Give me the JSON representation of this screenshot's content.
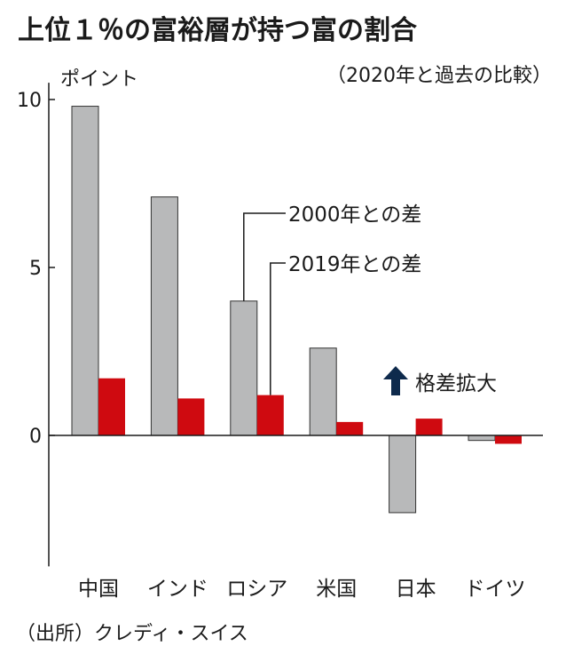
{
  "colors": {
    "series_2000": "#b8b9ba",
    "series_2019": "#cf0a10",
    "arrow": "#0e2a4c",
    "axis": "#1a1a1a"
  },
  "chart_data": {
    "type": "bar",
    "title": "上位１％の富裕層が持つ富の割合",
    "subtitle": "（2020年と過去の比較）",
    "ylabel": "ポイント",
    "xlabel": "",
    "ylim": [
      -3.9,
      10.5
    ],
    "yticks": [
      0,
      5,
      10
    ],
    "ytick_labels": [
      "0",
      "5",
      "10"
    ],
    "grid": false,
    "categories": [
      "中国",
      "インド",
      "ロシア",
      "米国",
      "日本",
      "ドイツ"
    ],
    "series": [
      {
        "name": "2000年との差",
        "values": [
          9.8,
          7.1,
          4.0,
          2.6,
          -2.3,
          -0.15
        ]
      },
      {
        "name": "2019年との差",
        "values": [
          1.7,
          1.1,
          1.2,
          0.4,
          0.5,
          -0.25
        ]
      }
    ],
    "annotation": "格差拡大",
    "source": "（出所）クレディ・スイス"
  }
}
